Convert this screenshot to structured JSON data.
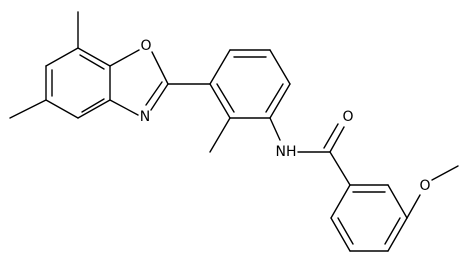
{
  "atom_labels": [
    "O",
    "N",
    "NH",
    "O",
    "O"
  ]
}
